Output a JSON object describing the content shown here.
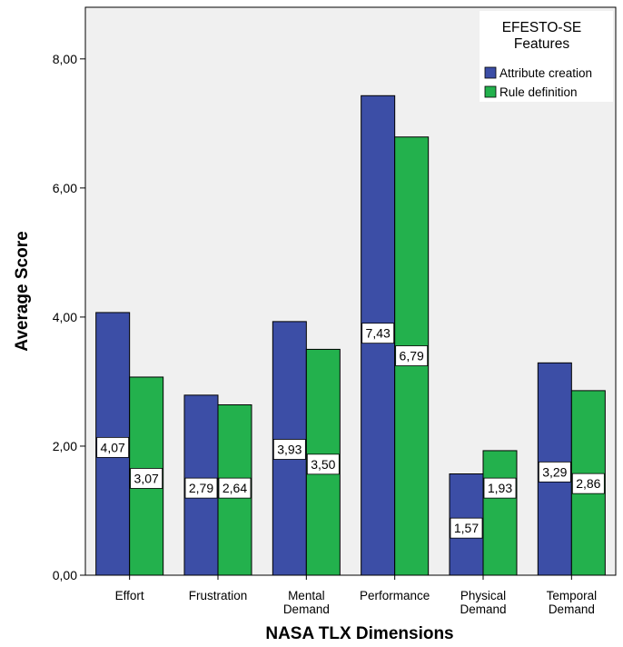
{
  "chart_data": {
    "type": "bar",
    "xlabel": "NASA TLX Dimensions",
    "ylabel": "Average Score",
    "ylim": [
      0,
      8.8
    ],
    "yticks": [
      "0,00",
      "2,00",
      "4,00",
      "6,00",
      "8,00"
    ],
    "ytick_values": [
      0,
      2,
      4,
      6,
      8
    ],
    "categories": [
      [
        "Effort"
      ],
      [
        "Frustration"
      ],
      [
        "Mental",
        "Demand"
      ],
      [
        "Performance"
      ],
      [
        "Physical",
        "Demand"
      ],
      [
        "Temporal",
        "Demand"
      ]
    ],
    "legend": {
      "title_lines": [
        "EFESTO-SE",
        "Features"
      ],
      "placement": "top-right"
    },
    "series": [
      {
        "name": "Attribute creation",
        "color": "#3c4ea6",
        "values": [
          4.07,
          2.79,
          3.93,
          7.43,
          1.57,
          3.29
        ],
        "labels": [
          "4,07",
          "2,79",
          "3,93",
          "7,43",
          "1,57",
          "3,29"
        ],
        "label_at": [
          1.98,
          1.35,
          1.95,
          3.75,
          0.73,
          1.6
        ]
      },
      {
        "name": "Rule definition",
        "color": "#23b14d",
        "values": [
          3.07,
          2.64,
          3.5,
          6.79,
          1.93,
          2.86
        ],
        "labels": [
          "3,07",
          "2,64",
          "3,50",
          "6,79",
          "1,93",
          "2,86"
        ],
        "label_at": [
          1.5,
          1.35,
          1.72,
          3.4,
          1.35,
          1.42
        ]
      }
    ],
    "grid": false,
    "background": "#f0f0f0"
  }
}
